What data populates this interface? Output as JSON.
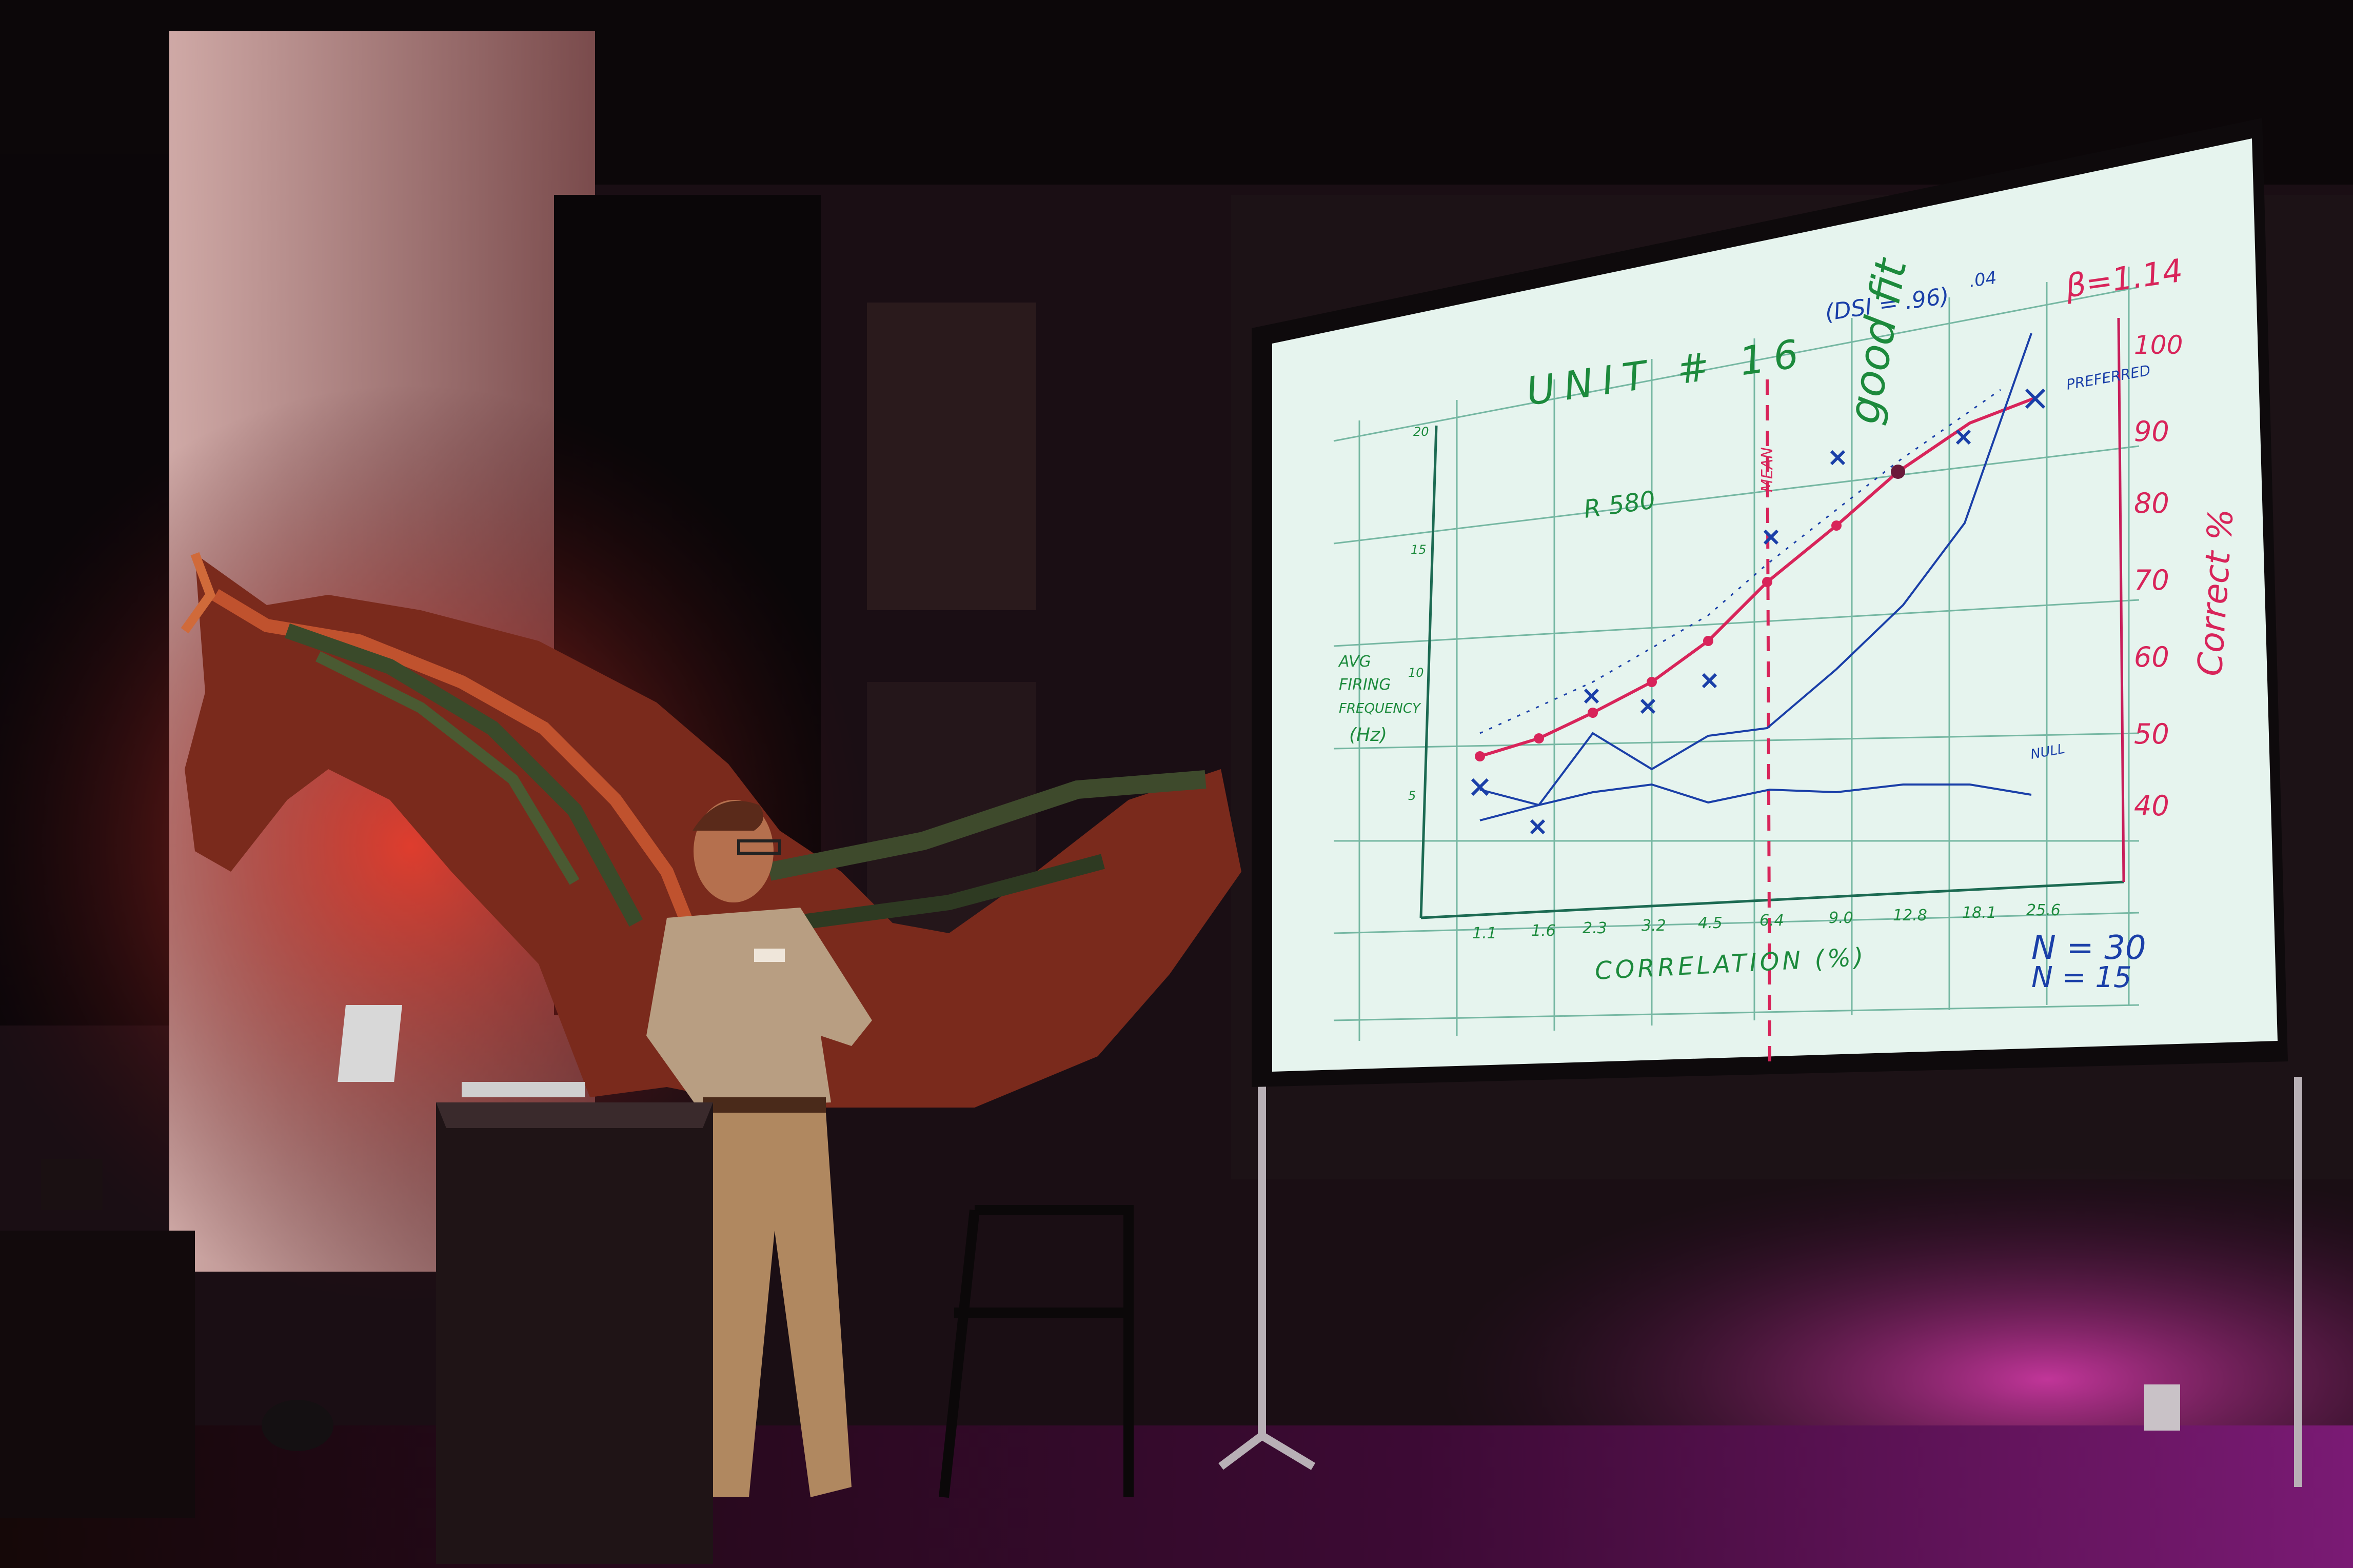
{
  "screen": {
    "title": "UNIT # 16",
    "dsi": "(DSI = .96)",
    "dsi_alt": ".04",
    "good_fit": "good fit",
    "beta": "β=1.14",
    "preferred": "PREFERRED",
    "rlabel": "R 580",
    "mean_label": "MEAN",
    "null_label": "NULL",
    "ylabel_lines": [
      "AVG",
      "FIRING",
      "FREQUENCY",
      "(Hz)"
    ],
    "xlabel": "CORRELATION (%)",
    "right_label": "Correct %",
    "n_lines": [
      "N = 30",
      "N = 15"
    ],
    "x_ticks": [
      "1.1",
      "1.6",
      "2.3",
      "3.2",
      "4.5",
      "6.4",
      "9.0",
      "12.8",
      "18.1",
      "25.6"
    ],
    "y_ticks_left": [
      "20",
      "15",
      "10",
      "5"
    ],
    "y_ticks_right": [
      "100",
      "90",
      "80",
      "70",
      "60",
      "50",
      "40"
    ]
  },
  "colors": {
    "screen_bg": "#e6f4ee",
    "grid": "#5aa890",
    "ink_blue": "#1a3fa8",
    "ink_red": "#d8245a",
    "ink_green": "#1c8a3c",
    "stage_red": "#c2261e",
    "stage_magenta": "#b0308c"
  }
}
